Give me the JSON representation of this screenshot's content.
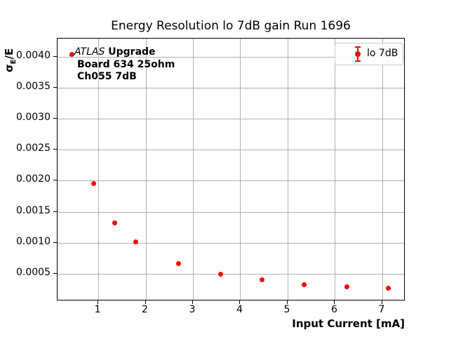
{
  "chart_data": {
    "type": "scatter",
    "title": "Energy Resolution lo 7dB gain Run 1696",
    "xlabel": "Input Current [mA]",
    "ylabel": "σE/E",
    "ylabel_parts": {
      "sigma": "σ",
      "sub": "E",
      "rest": "/E"
    },
    "xlim": [
      0.14,
      7.49
    ],
    "ylim": [
      6e-05,
      0.00429
    ],
    "x_ticks": [
      1,
      2,
      3,
      4,
      5,
      6,
      7
    ],
    "x_tick_labels": [
      "1",
      "2",
      "3",
      "4",
      "5",
      "6",
      "7"
    ],
    "y_ticks": [
      0.0005,
      0.001,
      0.0015,
      0.002,
      0.0025,
      0.003,
      0.0035,
      0.004
    ],
    "y_tick_labels": [
      "0.0005",
      "0.0010",
      "0.0015",
      "0.0020",
      "0.0025",
      "0.0030",
      "0.0035",
      "0.0040"
    ],
    "grid": true,
    "legend": {
      "position": "upper right",
      "label": "lo 7dB",
      "marker": "errorbar-dot",
      "marker_color": "#ff0000"
    },
    "series": [
      {
        "name": "lo 7dB",
        "color": "#ff0000",
        "marker": "circle",
        "x": [
          0.45,
          0.9,
          1.35,
          1.79,
          2.69,
          3.58,
          4.46,
          5.35,
          6.25,
          7.13
        ],
        "y": [
          0.00404,
          0.00195,
          0.00132,
          0.00102,
          0.00066,
          0.0005,
          0.00041,
          0.00033,
          0.00029,
          0.00027
        ]
      }
    ],
    "annotation": {
      "line1_italic": "ATLAS",
      "line1_bold": " Upgrade",
      "line2": "Board 634 25ohm",
      "line3": "Ch055 7dB"
    }
  },
  "colors": {
    "marker": "#ff0000",
    "grid": "#b0b0b0",
    "axis": "#000000",
    "background": "#ffffff",
    "legend_border": "#cccccc"
  }
}
